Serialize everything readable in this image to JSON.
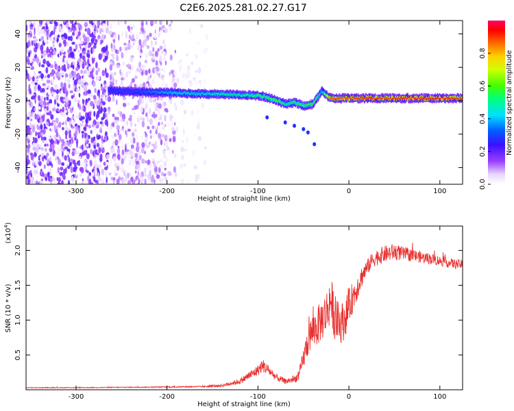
{
  "title": "C2E6.2025.281.02.27.G17",
  "chart_data": [
    {
      "type": "heatmap",
      "panel": "top",
      "xlabel": "Height of straight line (km)",
      "ylabel": "Frequency (Hz)",
      "xlim": [
        -355,
        125
      ],
      "ylim": [
        -50,
        48
      ],
      "xticks": [
        -300,
        -200,
        -100,
        0,
        100
      ],
      "xtick_labels": [
        "-300",
        "-200",
        "-100",
        "0",
        "100"
      ],
      "yticks": [
        -40,
        -20,
        0,
        20,
        40
      ],
      "ytick_labels": [
        "-40",
        "-20",
        "0",
        "20",
        "40"
      ],
      "colorbar": {
        "label": "Normalized spectral amplitude",
        "range": [
          0,
          1
        ],
        "ticks": [
          0.0,
          0.2,
          0.4,
          0.6,
          0.8
        ],
        "tick_labels": [
          "0.0",
          "0.2",
          "0.4",
          "0.6",
          "0.8"
        ]
      },
      "ridge": {
        "x": [
          -265,
          -240,
          -220,
          -200,
          -180,
          -160,
          -140,
          -120,
          -100,
          -90,
          -80,
          -70,
          -60,
          -50,
          -40,
          -35,
          -30,
          -25,
          -20,
          0,
          20,
          40,
          60,
          80,
          100,
          125
        ],
        "freq": [
          6,
          5.5,
          5,
          5,
          4.5,
          4,
          4,
          3.5,
          3,
          2,
          0,
          -2,
          -1,
          -3,
          -2,
          2,
          6,
          3,
          1.5,
          1.5,
          1.5,
          1.5,
          1.5,
          1.5,
          1.5,
          1.5
        ],
        "amplitude": [
          0.3,
          0.3,
          0.35,
          0.4,
          0.45,
          0.45,
          0.5,
          0.5,
          0.55,
          0.55,
          0.6,
          0.5,
          0.55,
          0.55,
          0.6,
          0.55,
          0.4,
          0.7,
          0.9,
          0.9,
          0.95,
          0.9,
          0.95,
          0.95,
          0.95,
          0.9
        ]
      },
      "noise_region_x": [
        -355,
        -155
      ],
      "secondary_feature": {
        "x": [
          -90,
          -70,
          -60,
          -50,
          -45,
          -38
        ],
        "freq": [
          -10,
          -13,
          -15,
          -17,
          -19,
          -26
        ]
      }
    },
    {
      "type": "line",
      "panel": "bottom",
      "xlabel": "Height of straight line (km)",
      "ylabel": "SNR (10 * v/v)",
      "y_multiplier": "(x10",
      "y_multiplier_exp": "4",
      "xlim": [
        -355,
        125
      ],
      "ylim": [
        0,
        2.35
      ],
      "xticks": [
        -300,
        -200,
        -100,
        0,
        100
      ],
      "xtick_labels": [
        "-300",
        "-200",
        "-100",
        "0",
        "100"
      ],
      "yticks": [
        0.5,
        1.0,
        1.5,
        2.0
      ],
      "ytick_labels": [
        "0.5",
        "1.0",
        "1.5",
        "2.0"
      ],
      "series": [
        {
          "name": "SNR",
          "color": "#e8302e",
          "x": [
            -355,
            -300,
            -250,
            -200,
            -160,
            -140,
            -120,
            -110,
            -100,
            -95,
            -90,
            -80,
            -70,
            -60,
            -55,
            -50,
            -45,
            -40,
            -35,
            -30,
            -25,
            -20,
            -15,
            -10,
            -5,
            0,
            5,
            10,
            15,
            20,
            25,
            30,
            40,
            50,
            60,
            70,
            80,
            90,
            100,
            110,
            120,
            125
          ],
          "y": [
            0.03,
            0.03,
            0.035,
            0.04,
            0.045,
            0.06,
            0.12,
            0.2,
            0.28,
            0.35,
            0.3,
            0.18,
            0.12,
            0.15,
            0.2,
            0.45,
            0.7,
            0.85,
            0.9,
            1.0,
            1.1,
            1.3,
            1.0,
            0.95,
            1.0,
            1.2,
            1.35,
            1.5,
            1.65,
            1.75,
            1.85,
            1.9,
            1.95,
            1.98,
            1.95,
            1.93,
            1.9,
            1.88,
            1.85,
            1.82,
            1.8,
            1.8
          ],
          "noise": [
            0.005,
            0.005,
            0.006,
            0.008,
            0.01,
            0.02,
            0.04,
            0.06,
            0.08,
            0.1,
            0.08,
            0.05,
            0.04,
            0.05,
            0.07,
            0.15,
            0.22,
            0.25,
            0.28,
            0.3,
            0.32,
            0.35,
            0.32,
            0.3,
            0.28,
            0.25,
            0.22,
            0.18,
            0.15,
            0.12,
            0.11,
            0.12,
            0.12,
            0.12,
            0.1,
            0.09,
            0.08,
            0.08,
            0.07,
            0.07,
            0.07,
            0.07
          ]
        }
      ]
    }
  ]
}
